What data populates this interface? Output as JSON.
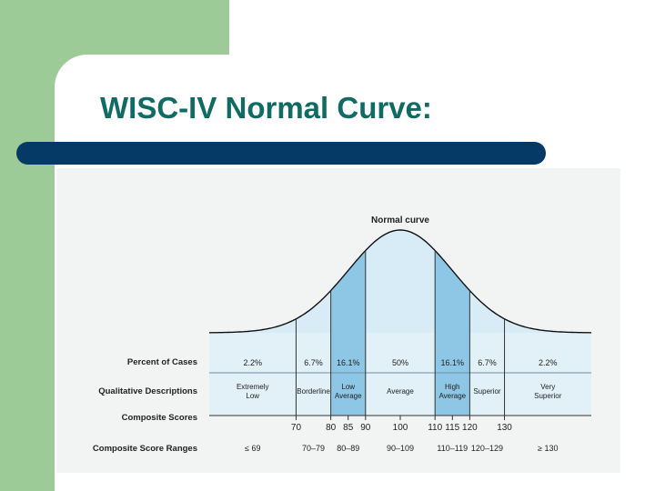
{
  "slide": {
    "title": "WISC-IV Normal Curve:"
  },
  "colors": {
    "green_panel": "#9ccb97",
    "title_text": "#0f6b64",
    "title_bar": "#063a66",
    "curve_fill_dark": "#8ec6e6",
    "curve_fill_light": "#d8ecf7",
    "table_fill": "#e2f0f8"
  },
  "chart_data": {
    "type": "area",
    "title": "Normal curve",
    "row_labels": {
      "percent": "Percent of Cases",
      "qualitative": "Qualitative Descriptions",
      "scores": "Composite Scores",
      "ranges": "Composite Score Ranges"
    },
    "boundaries": [
      70,
      80,
      90,
      110,
      120,
      130
    ],
    "mean": 100,
    "sd": 15,
    "xlim": [
      45,
      155
    ],
    "score_ticks": [
      "70",
      "80",
      "85",
      "90",
      "100",
      "110",
      "115",
      "120",
      "130"
    ],
    "categories": [
      {
        "from": 45,
        "to": 70,
        "percent": "2.2%",
        "description": [
          "Extremely",
          "Low"
        ],
        "range": "≤ 69",
        "shade": "light"
      },
      {
        "from": 70,
        "to": 80,
        "percent": "6.7%",
        "description": [
          "Borderline"
        ],
        "range": "70–79",
        "shade": "light"
      },
      {
        "from": 80,
        "to": 90,
        "percent": "16.1%",
        "description": [
          "Low",
          "Average"
        ],
        "range": "80–89",
        "shade": "dark"
      },
      {
        "from": 90,
        "to": 110,
        "percent": "50%",
        "description": [
          "Average"
        ],
        "range": "90–109",
        "shade": "light"
      },
      {
        "from": 110,
        "to": 120,
        "percent": "16.1%",
        "description": [
          "High",
          "Average"
        ],
        "range": "110–119",
        "shade": "dark"
      },
      {
        "from": 120,
        "to": 130,
        "percent": "6.7%",
        "description": [
          "Superior"
        ],
        "range": "120–129",
        "shade": "light"
      },
      {
        "from": 130,
        "to": 155,
        "percent": "2.2%",
        "description": [
          "Very",
          "Superior"
        ],
        "range": "≥ 130",
        "shade": "light"
      }
    ]
  }
}
